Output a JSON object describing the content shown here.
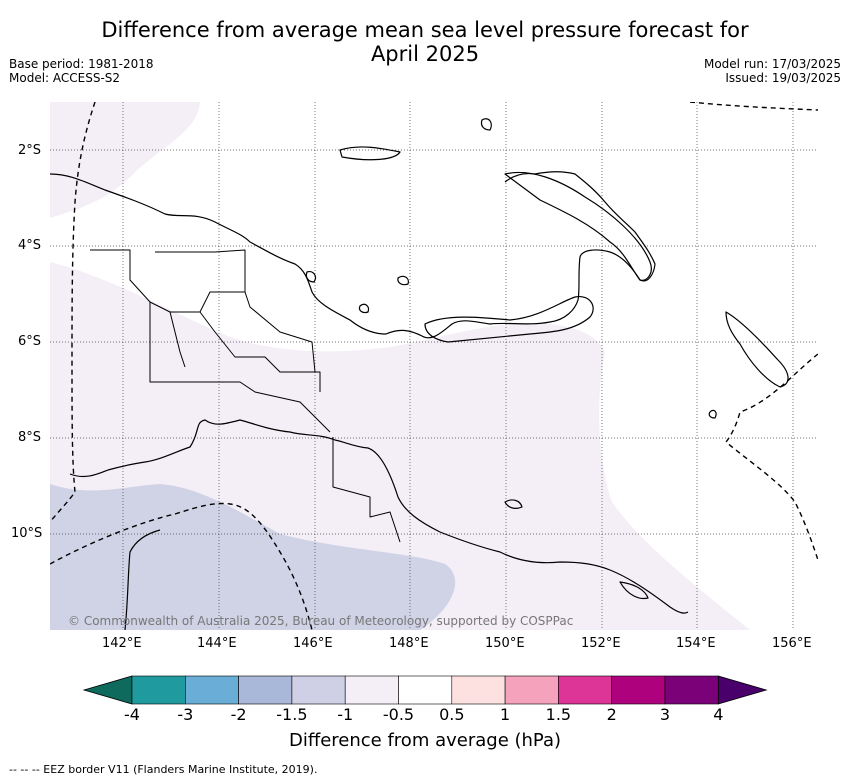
{
  "header": {
    "title_line1": "Difference from average mean sea level pressure forecast for",
    "title_line2": "April 2025",
    "base_period": "Base period: 1981-2018",
    "model": "Model: ACCESS-S2",
    "model_run": "Model run: 17/03/2025",
    "issued": "Issued: 19/03/2025"
  },
  "map": {
    "lat_labels": [
      "2°S",
      "4°S",
      "6°S",
      "8°S",
      "10°S"
    ],
    "lon_labels": [
      "142°E",
      "144°E",
      "146°E",
      "148°E",
      "150°E",
      "152°E",
      "154°E",
      "156°E"
    ],
    "copyright": "© Commonwealth of Australia 2025, Bureau of Meteorology, supported by COSPPac",
    "colors": {
      "band_-1_-0.5": "#f4eef6",
      "band_-1.5_-1": "#d0d2e6",
      "coast": "#000000"
    }
  },
  "colorbar": {
    "title": "Difference from average (hPa)",
    "ticks": [
      "-4",
      "-3",
      "-2",
      "-1.5",
      "-1",
      "-0.5",
      "0.5",
      "1",
      "1.5",
      "2",
      "3",
      "4"
    ],
    "colors": [
      "#0e6a5c",
      "#1f9a9e",
      "#6aadd6",
      "#a9b8d8",
      "#cfd0e6",
      "#f4eef6",
      "#ffffff",
      "#fde0e0",
      "#f5a3bd",
      "#dd3497",
      "#ae017e",
      "#7a0177",
      "#49006a"
    ]
  },
  "footnote": "-- -- -- EEZ border V11 (Flanders Marine Institute, 2019)."
}
